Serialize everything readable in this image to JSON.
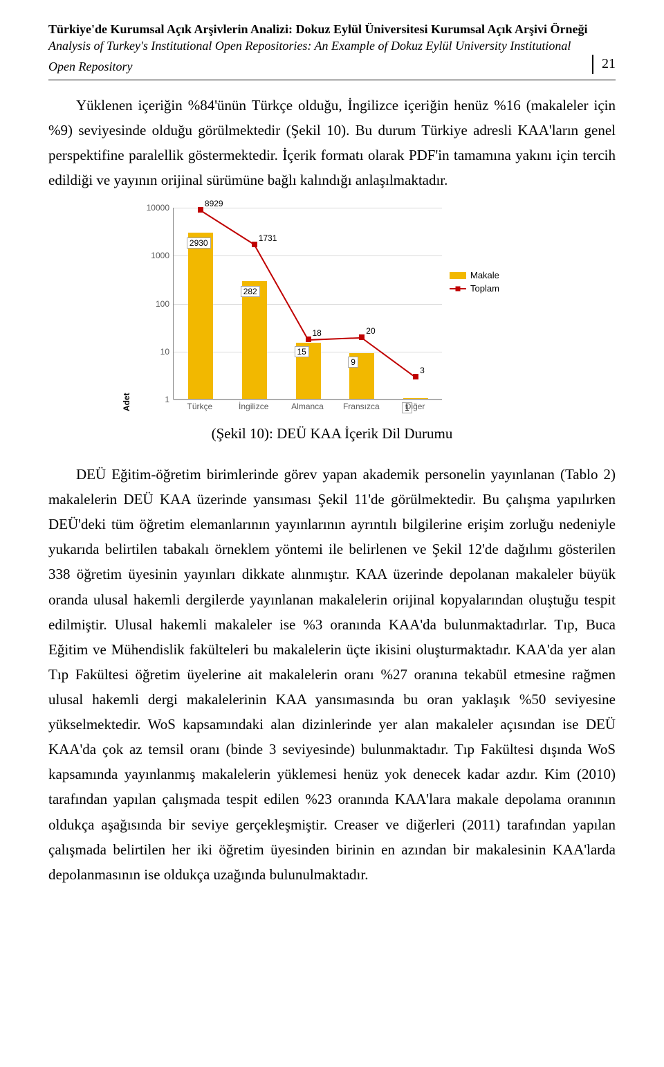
{
  "header": {
    "title_tr": "Türkiye'de Kurumsal Açık Arşivlerin Analizi: Dokuz Eylül Üniversitesi Kurumsal Açık Arşivi Örneği",
    "title_en_line1": "Analysis of Turkey's Institutional Open Repositories: An Example of Dokuz Eylül University Institutional",
    "title_en_line2": "Open Repository",
    "page_number": "21"
  },
  "paragraph1": "Yüklenen içeriğin %84'ünün Türkçe olduğu, İngilizce içeriğin henüz %16 (makaleler için %9) seviyesinde olduğu görülmektedir (Şekil 10). Bu durum Türkiye adresli KAA'ların genel perspektifine paralellik göstermektedir. İçerik formatı olarak PDF'in tamamına yakını için tercih edildiği ve yayının orijinal sürümüne bağlı kalındığı anlaşılmaktadır.",
  "chart": {
    "type": "bar-line-combo",
    "y_axis_label": "Adet",
    "y_scale": "log",
    "y_ticks": [
      1,
      10,
      100,
      1000,
      10000
    ],
    "categories": [
      "Türkçe",
      "İngilizce",
      "Almanca",
      "Fransızca",
      "Diğer"
    ],
    "bar_series": {
      "name": "Makale",
      "values": [
        2930,
        282,
        15,
        9,
        1
      ],
      "color": "#f2b800"
    },
    "line_series": {
      "name": "Toplam",
      "values": [
        8929,
        1731,
        18,
        20,
        3
      ],
      "color": "#c00000"
    },
    "bar_value_labels": [
      "2930",
      "282",
      "15",
      "9",
      "1"
    ],
    "line_value_labels": [
      "8929",
      "1731",
      "18",
      "20",
      "3"
    ],
    "background_color": "#ffffff",
    "grid_color": "#d9d9d9",
    "font_family": "Arial",
    "label_fontsize": 12
  },
  "caption": "(Şekil 10): DEÜ KAA İçerik Dil Durumu",
  "paragraph2": "DEÜ Eğitim-öğretim birimlerinde görev yapan akademik personelin yayınlanan (Tablo 2) makalelerin DEÜ KAA üzerinde yansıması Şekil 11'de görülmektedir. Bu çalışma yapılırken DEÜ'deki tüm öğretim elemanlarının yayınlarının ayrıntılı bilgilerine erişim zorluğu nedeniyle yukarıda belirtilen tabakalı örneklem yöntemi ile belirlenen ve Şekil 12'de dağılımı gösterilen 338 öğretim üyesinin yayınları dikkate alınmıştır. KAA üzerinde depolanan makaleler büyük oranda ulusal hakemli dergilerde yayınlanan makalelerin orijinal kopyalarından oluştuğu tespit edilmiştir. Ulusal hakemli makaleler ise %3 oranında KAA'da bulunmaktadırlar. Tıp, Buca Eğitim ve Mühendislik fakülteleri bu makalelerin üçte ikisini oluşturmaktadır. KAA'da yer alan Tıp Fakültesi öğretim üyelerine ait makalelerin oranı %27 oranına tekabül etmesine rağmen ulusal hakemli dergi makalelerinin KAA yansımasında bu oran yaklaşık %50 seviyesine yükselmektedir. WoS kapsamındaki alan dizinlerinde yer alan makaleler açısından ise DEÜ KAA'da çok az temsil oranı (binde 3 seviyesinde) bulunmaktadır. Tıp Fakültesi dışında WoS kapsamında yayınlanmış makalelerin yüklemesi henüz yok denecek kadar azdır. Kim (2010) tarafından yapılan çalışmada tespit edilen %23 oranında KAA'lara makale depolama oranının oldukça aşağısında bir seviye gerçekleşmiştir. Creaser ve diğerleri (2011) tarafından yapılan çalışmada belirtilen her iki öğretim üyesinden birinin en azından bir makalesinin KAA'larda depolanmasının ise oldukça uzağında bulunulmaktadır."
}
